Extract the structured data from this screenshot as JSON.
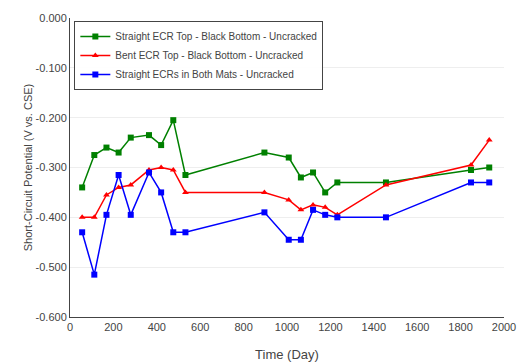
{
  "chart_data": {
    "type": "line",
    "xlabel": "Time (Day)",
    "ylabel": "Short-Circuit Potential (V vs. CSE)",
    "xlim": [
      0,
      2000
    ],
    "ylim": [
      -0.6,
      0.0
    ],
    "xticks": [
      0,
      200,
      400,
      600,
      800,
      1000,
      1200,
      1400,
      1600,
      1800,
      2000
    ],
    "yticks": [
      {
        "value": 0.0,
        "label": "0.000"
      },
      {
        "value": -0.1,
        "label": "-0.100"
      },
      {
        "value": -0.2,
        "label": "-0.200"
      },
      {
        "value": -0.3,
        "label": "-0.300"
      },
      {
        "value": -0.4,
        "label": "-0.400"
      },
      {
        "value": -0.5,
        "label": "-0.500"
      },
      {
        "value": -0.6,
        "label": "-0.600"
      }
    ],
    "grid": true,
    "legend": "upper left",
    "series": [
      {
        "name": "Straight ECR Top - Black Bottom - Uncracked",
        "color": "#008000",
        "marker": "square",
        "x": [
          56,
          112,
          168,
          224,
          280,
          364,
          420,
          476,
          532,
          896,
          1008,
          1064,
          1120,
          1176,
          1232,
          1456,
          1848,
          1932
        ],
        "values": [
          -0.34,
          -0.275,
          -0.26,
          -0.27,
          -0.24,
          -0.235,
          -0.255,
          -0.205,
          -0.315,
          -0.27,
          -0.28,
          -0.32,
          -0.31,
          -0.35,
          -0.33,
          -0.33,
          -0.305,
          -0.3
        ]
      },
      {
        "name": "Bent ECR Top - Black Bottom - Uncracked",
        "color": "#ff0000",
        "marker": "triangle-up",
        "x": [
          56,
          112,
          168,
          224,
          280,
          364,
          420,
          476,
          532,
          896,
          1008,
          1064,
          1120,
          1176,
          1232,
          1456,
          1848,
          1932
        ],
        "values": [
          -0.4,
          -0.4,
          -0.355,
          -0.34,
          -0.335,
          -0.305,
          -0.3,
          -0.305,
          -0.35,
          -0.35,
          -0.365,
          -0.385,
          -0.375,
          -0.38,
          -0.395,
          -0.335,
          -0.295,
          -0.245
        ]
      },
      {
        "name": "Straight ECRs in Both Mats - Uncracked",
        "color": "#0000ff",
        "marker": "square",
        "x": [
          56,
          112,
          168,
          224,
          280,
          364,
          420,
          476,
          532,
          896,
          1008,
          1064,
          1120,
          1176,
          1232,
          1456,
          1848,
          1932
        ],
        "values": [
          -0.43,
          -0.515,
          -0.395,
          -0.315,
          -0.395,
          -0.31,
          -0.35,
          -0.43,
          -0.43,
          -0.39,
          -0.445,
          -0.445,
          -0.385,
          -0.395,
          -0.4,
          -0.4,
          -0.33,
          -0.33
        ]
      }
    ]
  }
}
